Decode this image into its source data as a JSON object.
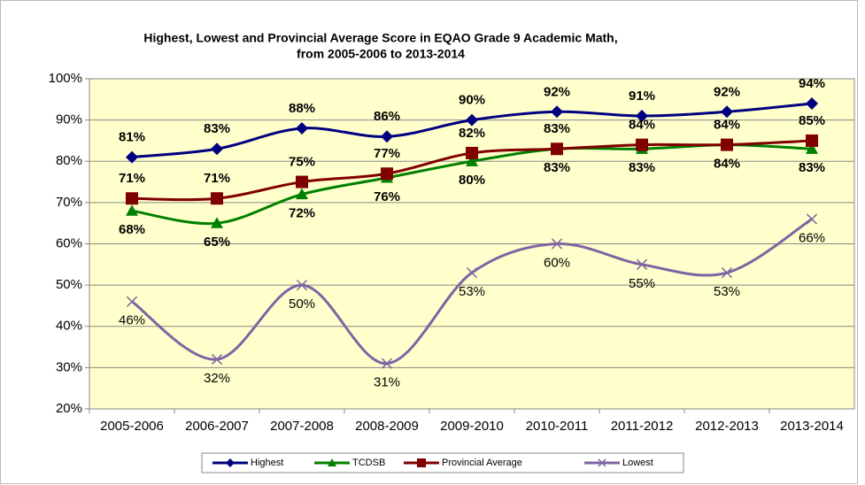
{
  "chart_data": {
    "type": "line",
    "title": [
      "Highest, Lowest and Provincial Average Score in EQAO Grade 9 Academic Math,",
      "from 2005-2006 to 2013-2014"
    ],
    "categories": [
      "2005-2006",
      "2006-2007",
      "2007-2008",
      "2008-2009",
      "2009-2010",
      "2010-2011",
      "2011-2012",
      "2012-2013",
      "2013-2014"
    ],
    "ylim": [
      20,
      100
    ],
    "yticks": [
      {
        "value": 20,
        "label": "20%"
      },
      {
        "value": 30,
        "label": "30%"
      },
      {
        "value": 40,
        "label": "40%"
      },
      {
        "value": 50,
        "label": "50%"
      },
      {
        "value": 60,
        "label": "60%"
      },
      {
        "value": 70,
        "label": "70%"
      },
      {
        "value": 80,
        "label": "80%"
      },
      {
        "value": 90,
        "label": "90%"
      },
      {
        "value": 100,
        "label": "100%"
      }
    ],
    "grid": true,
    "legend": "bottom",
    "series": [
      {
        "name": "Highest",
        "color": "#000080",
        "marker": "diamond",
        "values": [
          81,
          83,
          88,
          86,
          90,
          92,
          91,
          92,
          94
        ],
        "value_labels": [
          "81%",
          "83%",
          "88%",
          "86%",
          "90%",
          "92%",
          "91%",
          "92%",
          "94%"
        ]
      },
      {
        "name": "TCDSB",
        "color": "#008000",
        "marker": "triangle",
        "values": [
          68,
          65,
          72,
          76,
          80,
          83,
          83,
          84,
          83
        ],
        "value_labels": [
          "68%",
          "65%",
          "72%",
          "76%",
          "80%",
          "83%",
          "83%",
          "84%",
          "83%"
        ]
      },
      {
        "name": "Provincial Average",
        "color": "#800000",
        "marker": "square",
        "values": [
          71,
          71,
          75,
          77,
          82,
          83,
          84,
          84,
          85
        ],
        "value_labels": [
          "71%",
          "71%",
          "75%",
          "77%",
          "82%",
          "83%",
          "84%",
          "84%",
          "85%"
        ]
      },
      {
        "name": "Lowest",
        "color": "#8064a2",
        "marker": "x",
        "values": [
          46,
          32,
          50,
          31,
          53,
          60,
          55,
          53,
          66
        ],
        "value_labels": [
          "46%",
          "32%",
          "50%",
          "31%",
          "53%",
          "60%",
          "55%",
          "53%",
          "66%"
        ]
      }
    ]
  }
}
